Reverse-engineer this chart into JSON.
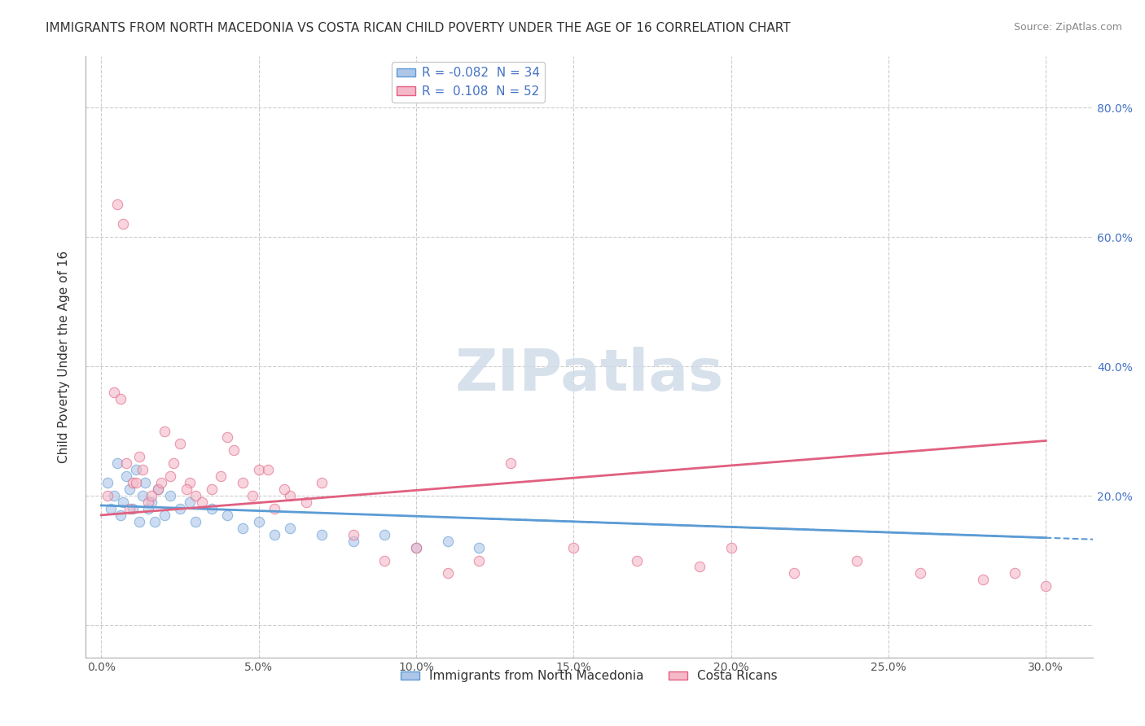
{
  "title": "IMMIGRANTS FROM NORTH MACEDONIA VS COSTA RICAN CHILD POVERTY UNDER THE AGE OF 16 CORRELATION CHART",
  "source": "Source: ZipAtlas.com",
  "xlabel_label": "",
  "ylabel_label": "Child Poverty Under the Age of 16",
  "x_ticks": [
    0.0,
    0.05,
    0.1,
    0.15,
    0.2,
    0.25,
    0.3
  ],
  "x_tick_labels": [
    "0.0%",
    "5.0%",
    "10.0%",
    "15.0%",
    "20.0%",
    "25.0%",
    "30.0%"
  ],
  "y_ticks": [
    0.0,
    0.2,
    0.4,
    0.6,
    0.8
  ],
  "y_tick_labels": [
    "",
    "20.0%",
    "40.0%",
    "60.0%",
    "80.0%"
  ],
  "xlim": [
    -0.005,
    0.315
  ],
  "ylim": [
    -0.05,
    0.88
  ],
  "legend_entries": [
    {
      "label": "R = -0.082  N = 34",
      "color": "#aec6e8",
      "border": "#5b9bd5"
    },
    {
      "label": "R =  0.108  N = 52",
      "color": "#f4b8c8",
      "border": "#e06080"
    }
  ],
  "bottom_legend": [
    {
      "label": "Immigrants from North Macedonia",
      "color": "#aec6e8",
      "border": "#5b9bd5"
    },
    {
      "label": "Costa Ricans",
      "color": "#f4b8c8",
      "border": "#e06080"
    }
  ],
  "blue_scatter_x": [
    0.002,
    0.003,
    0.004,
    0.005,
    0.006,
    0.007,
    0.008,
    0.009,
    0.01,
    0.011,
    0.012,
    0.013,
    0.014,
    0.015,
    0.016,
    0.017,
    0.018,
    0.02,
    0.022,
    0.025,
    0.028,
    0.03,
    0.035,
    0.04,
    0.045,
    0.05,
    0.055,
    0.06,
    0.07,
    0.08,
    0.09,
    0.1,
    0.11,
    0.12
  ],
  "blue_scatter_y": [
    0.22,
    0.18,
    0.2,
    0.25,
    0.17,
    0.19,
    0.23,
    0.21,
    0.18,
    0.24,
    0.16,
    0.2,
    0.22,
    0.18,
    0.19,
    0.16,
    0.21,
    0.17,
    0.2,
    0.18,
    0.19,
    0.16,
    0.18,
    0.17,
    0.15,
    0.16,
    0.14,
    0.15,
    0.14,
    0.13,
    0.14,
    0.12,
    0.13,
    0.12
  ],
  "pink_scatter_x": [
    0.002,
    0.004,
    0.006,
    0.008,
    0.01,
    0.012,
    0.015,
    0.018,
    0.02,
    0.022,
    0.025,
    0.028,
    0.03,
    0.035,
    0.04,
    0.045,
    0.05,
    0.055,
    0.06,
    0.065,
    0.07,
    0.08,
    0.09,
    0.1,
    0.11,
    0.12,
    0.13,
    0.15,
    0.17,
    0.19,
    0.2,
    0.22,
    0.24,
    0.26,
    0.28,
    0.29,
    0.3,
    0.005,
    0.007,
    0.009,
    0.011,
    0.013,
    0.016,
    0.019,
    0.023,
    0.027,
    0.032,
    0.038,
    0.042,
    0.048,
    0.053,
    0.058
  ],
  "pink_scatter_y": [
    0.2,
    0.36,
    0.35,
    0.25,
    0.22,
    0.26,
    0.19,
    0.21,
    0.3,
    0.23,
    0.28,
    0.22,
    0.2,
    0.21,
    0.29,
    0.22,
    0.24,
    0.18,
    0.2,
    0.19,
    0.22,
    0.14,
    0.1,
    0.12,
    0.08,
    0.1,
    0.25,
    0.12,
    0.1,
    0.09,
    0.12,
    0.08,
    0.1,
    0.08,
    0.07,
    0.08,
    0.06,
    0.65,
    0.62,
    0.18,
    0.22,
    0.24,
    0.2,
    0.22,
    0.25,
    0.21,
    0.19,
    0.23,
    0.27,
    0.2,
    0.24,
    0.21
  ],
  "blue_line_x": [
    0.0,
    0.3
  ],
  "blue_line_y_start": 0.185,
  "blue_line_y_end": 0.135,
  "pink_line_x": [
    0.0,
    0.3
  ],
  "pink_line_y_start": 0.17,
  "pink_line_y_end": 0.285,
  "scatter_alpha": 0.6,
  "scatter_size": 80,
  "blue_color": "#aec6e8",
  "blue_edge_color": "#5b9bd5",
  "pink_color": "#f4b8c8",
  "pink_edge_color": "#e06080",
  "blue_line_color": "#5b9bd5",
  "pink_line_color": "#e06080",
  "grid_color": "#cccccc",
  "background_color": "#ffffff",
  "watermark_text": "ZIPatlas",
  "watermark_color": "#d0dce8",
  "title_fontsize": 11,
  "axis_label_fontsize": 11,
  "tick_fontsize": 10,
  "source_fontsize": 9,
  "legend_fontsize": 11,
  "R_blue": -0.082,
  "N_blue": 34,
  "R_pink": 0.108,
  "N_pink": 52
}
